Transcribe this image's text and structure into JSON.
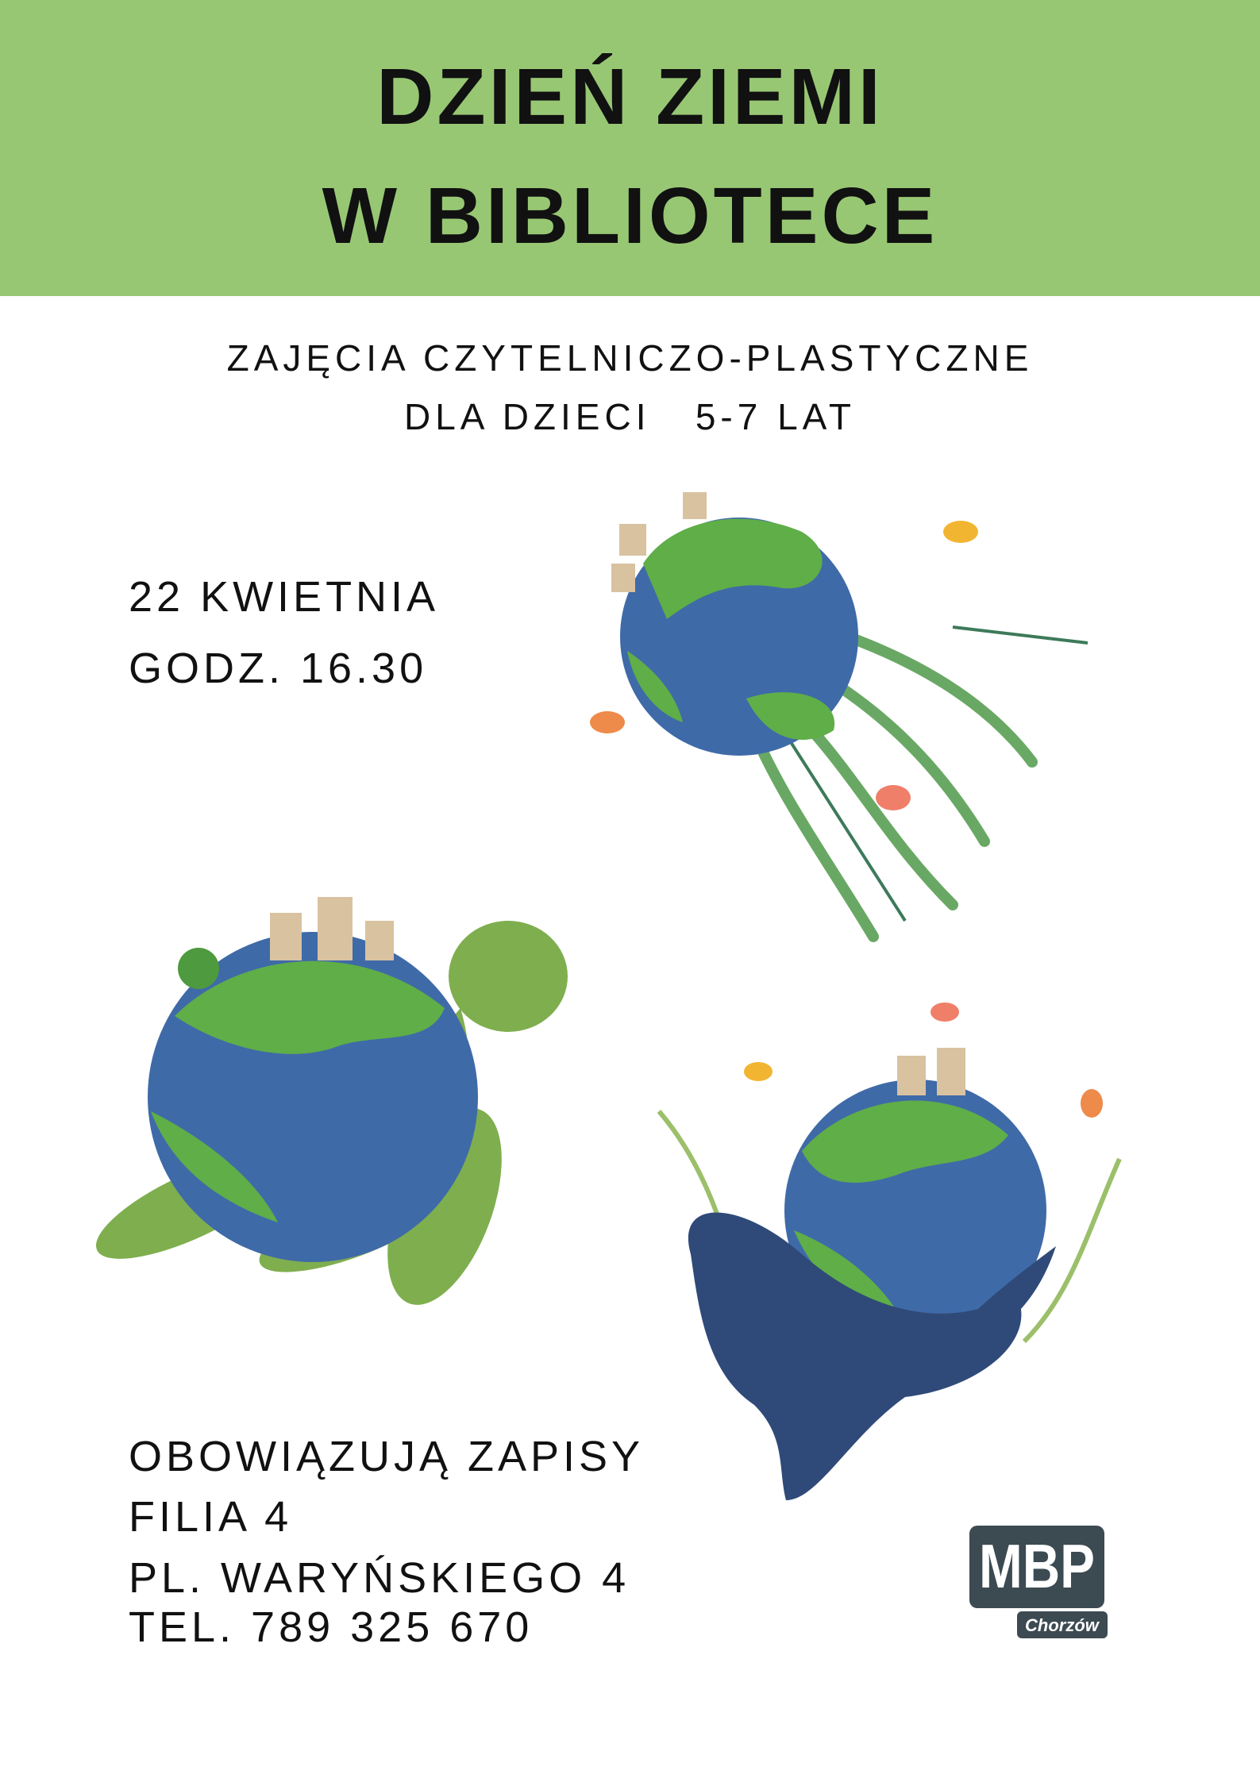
{
  "colors": {
    "header_bg": "#98c774",
    "ocean": "#3f6aa8",
    "land": "#5fae48",
    "turtle": "#7fae4e",
    "whale": "#2f4a78",
    "logo": "#3c4a52"
  },
  "header": {
    "title_line1": "DZIEŃ ZIEMI",
    "title_line2": "W BIBLIOTECE"
  },
  "subtitle": {
    "line1": "ZAJĘCIA CZYTELNICZO-PLASTYCZNE",
    "line2": "DLA DZIECI   5-7 LAT"
  },
  "event": {
    "date": "22 KWIETNIA",
    "time": "GODZ. 16.30"
  },
  "footer": {
    "line1": "OBOWIĄZUJĄ ZAPISY",
    "line2": "FILIA 4",
    "line3": "PL. WARYŃSKIEGO 4",
    "line4": "TEL. 789 325 670"
  },
  "logo": {
    "text": "MBP",
    "city": "Chorzów"
  },
  "illustrations": [
    "earth-with-plants-icon",
    "earth-turtle-icon",
    "earth-whale-icon"
  ]
}
